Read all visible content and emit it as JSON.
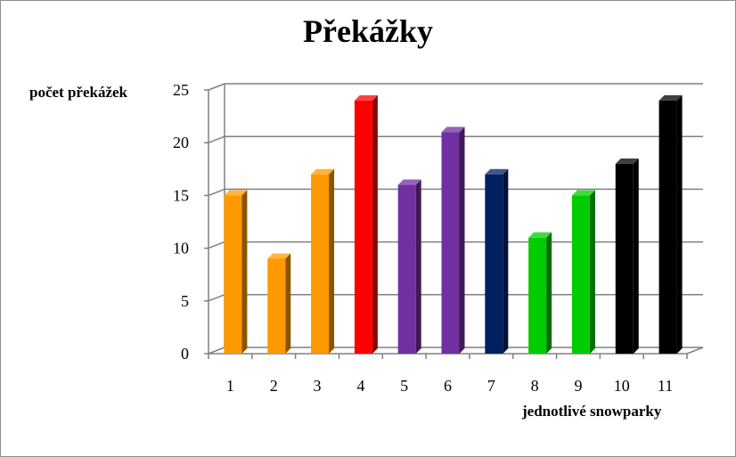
{
  "chart_data": {
    "type": "bar",
    "title": "Překážky",
    "ylabel": "počet překážek",
    "xlabel": "jednotlivé snowparky",
    "categories": [
      "1",
      "2",
      "3",
      "4",
      "5",
      "6",
      "7",
      "8",
      "9",
      "10",
      "11"
    ],
    "values": [
      15,
      9,
      17,
      24,
      16,
      21,
      17,
      11,
      15,
      18,
      24
    ],
    "colors": [
      "#FF9900",
      "#FF9900",
      "#FF9900",
      "#FF0000",
      "#7030A0",
      "#7030A0",
      "#002060",
      "#00CC00",
      "#00CC00",
      "#000000",
      "#000000"
    ],
    "ylim": [
      0,
      25
    ],
    "yticks": [
      0,
      5,
      10,
      15,
      20,
      25
    ],
    "grid": true,
    "style": "3d-column"
  }
}
